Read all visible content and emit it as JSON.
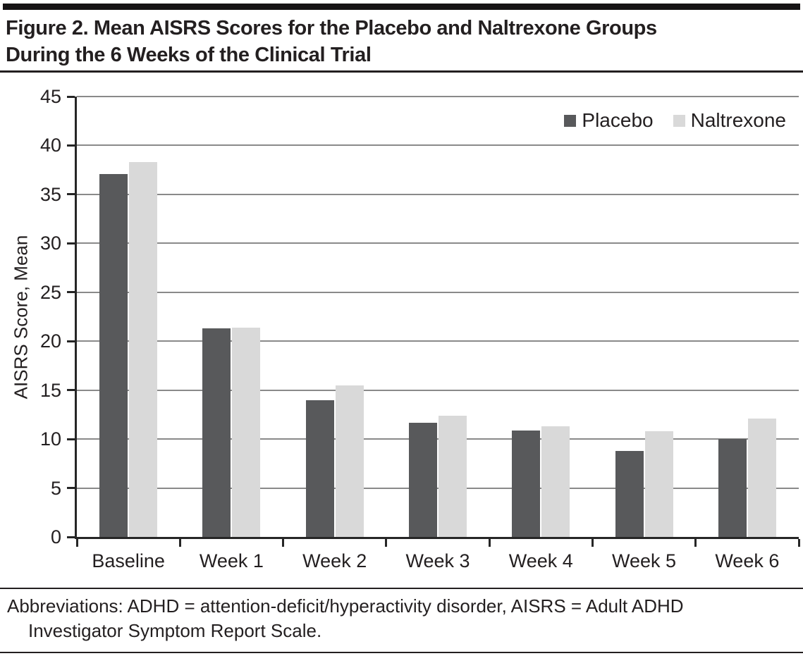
{
  "figure": {
    "title_lines": [
      "Figure 2. Mean AISRS Scores for the Placebo and Naltrexone Groups",
      "During the 6 Weeks of the Clinical Trial"
    ],
    "footnote_lines": [
      "Abbreviations: ADHD = attention-deficit/hyperactivity disorder, AISRS = Adult ADHD",
      "Investigator Symptom Report Scale."
    ]
  },
  "chart_data": {
    "type": "bar",
    "title": "Mean AISRS Scores for the Placebo and Naltrexone Groups During the 6 Weeks of the Clinical Trial",
    "categories": [
      "Baseline",
      "Week 1",
      "Week 2",
      "Week 3",
      "Week 4",
      "Week 5",
      "Week 6"
    ],
    "series": [
      {
        "name": "Placebo",
        "color": "#58595b",
        "values": [
          37.1,
          21.3,
          14.0,
          11.7,
          10.9,
          8.8,
          10.0
        ]
      },
      {
        "name": "Naltrexone",
        "color": "#d9d9d9",
        "values": [
          38.3,
          21.4,
          15.5,
          12.4,
          11.3,
          10.8,
          12.1
        ]
      }
    ],
    "xlabel": "",
    "ylabel": "AISRS Score, Mean",
    "ylim": [
      0,
      45
    ],
    "ytick_step": 5,
    "grid": true,
    "legend_position": "top-right",
    "colors": {
      "grid": "#8a8a8a",
      "axis": "#262626",
      "text": "#231f20"
    }
  }
}
